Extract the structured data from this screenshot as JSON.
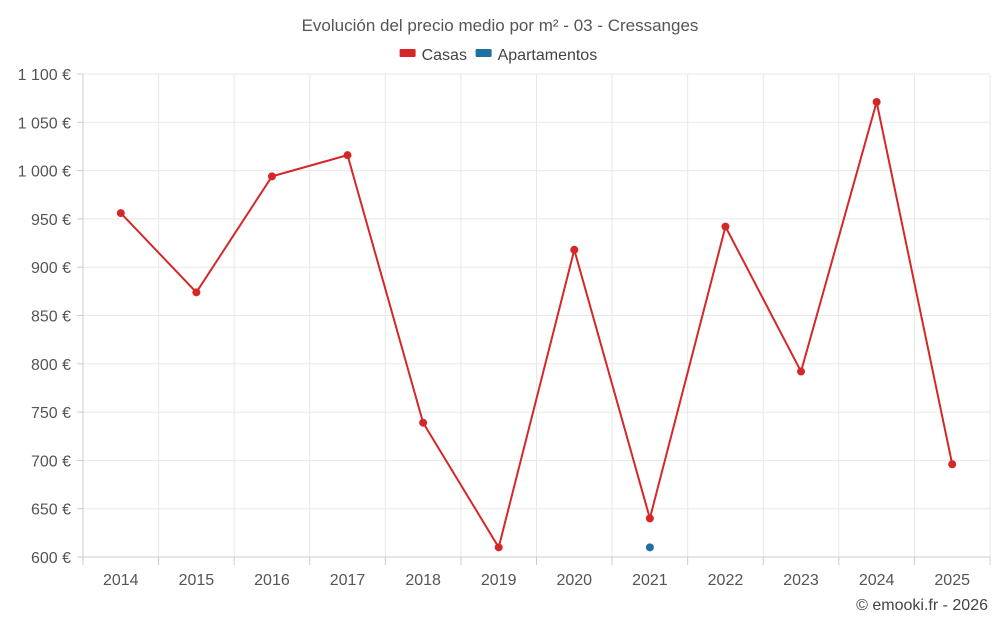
{
  "chart_data": {
    "type": "line",
    "title": "Evolución del precio medio por m² - 03 - Cressanges",
    "categories": [
      "2014",
      "2015",
      "2016",
      "2017",
      "2018",
      "2019",
      "2020",
      "2021",
      "2022",
      "2023",
      "2024",
      "2025"
    ],
    "series": [
      {
        "name": "Casas",
        "color": "#d62728",
        "values": [
          956,
          874,
          994,
          1016,
          739,
          610,
          918,
          640,
          942,
          792,
          1071,
          696
        ]
      },
      {
        "name": "Apartamentos",
        "color": "#1f6fa3",
        "values": [
          null,
          null,
          null,
          null,
          null,
          null,
          null,
          610,
          null,
          null,
          null,
          null
        ]
      }
    ],
    "ylim": [
      600,
      1100
    ],
    "yticks": [
      600,
      650,
      700,
      750,
      800,
      850,
      900,
      950,
      1000,
      1050,
      1100
    ],
    "ytick_labels": [
      "600 €",
      "650 €",
      "700 €",
      "750 €",
      "800 €",
      "850 €",
      "900 €",
      "950 €",
      "1 000 €",
      "1 050 €",
      "1 100 €"
    ],
    "xlabel": "",
    "ylabel": "",
    "legend_position": "top-center",
    "grid": true
  },
  "credit": "© emooki.fr - 2026"
}
